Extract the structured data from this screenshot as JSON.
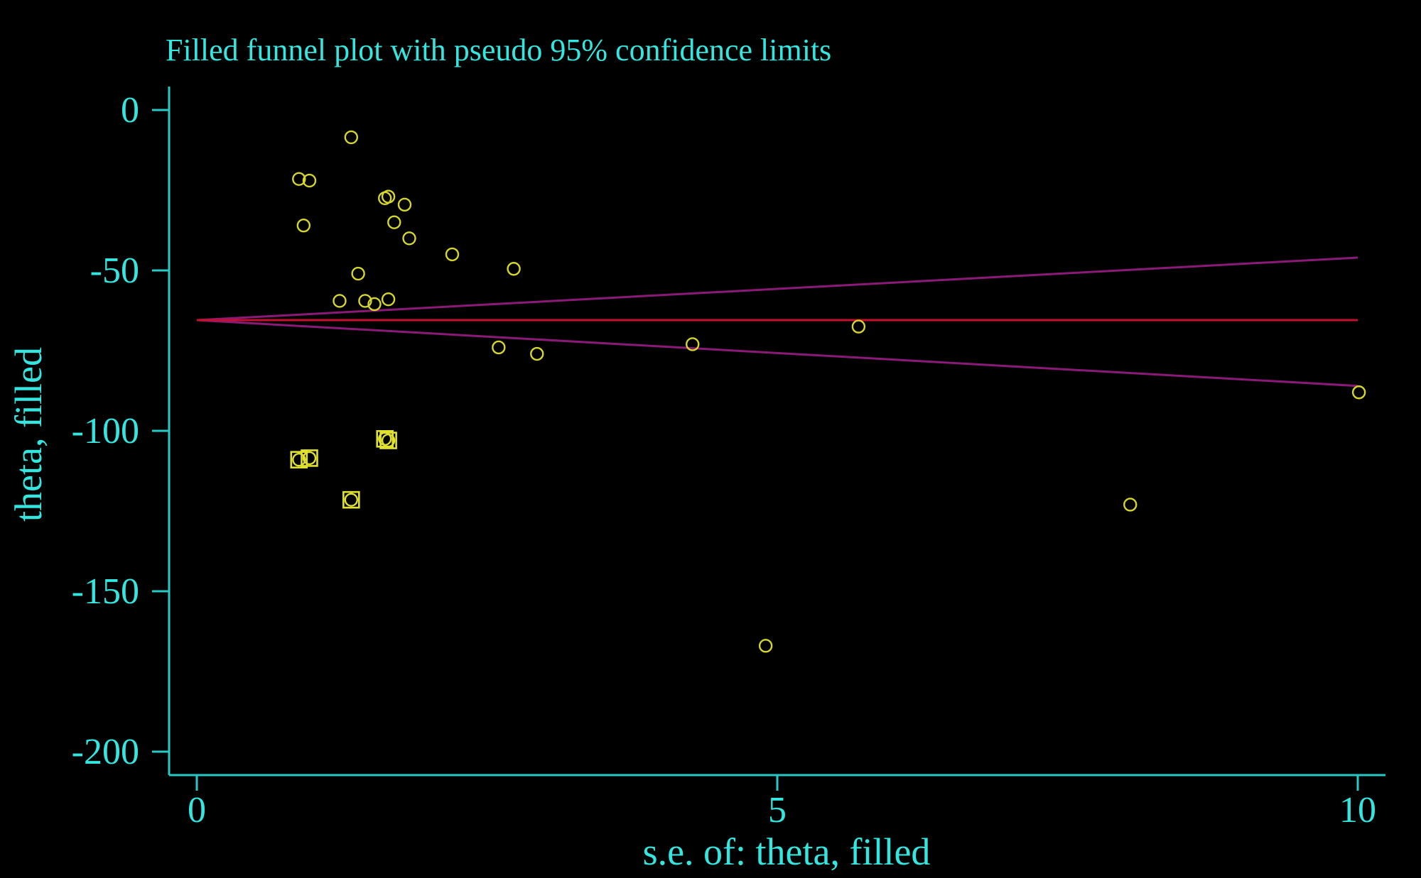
{
  "chart_data": {
    "type": "scatter",
    "title": "Filled funnel plot with pseudo 95% confidence limits",
    "xlabel": "s.e. of: theta, filled",
    "ylabel": "theta, filled",
    "xlim": [
      -0.25,
      10.25
    ],
    "ylim": [
      -207,
      7
    ],
    "xticks": [
      0,
      5,
      10
    ],
    "yticks": [
      0,
      -50,
      -100,
      -150,
      -200
    ],
    "grid": false,
    "colors": {
      "background": "#000000",
      "text": "#33e6e0",
      "axis": "#26c9c4",
      "points": "#d6d62a",
      "filled_markers": "#e0e02e",
      "pooled_line": "#c8102e",
      "ci_lines": "#8a1a78"
    },
    "pooled_estimate": -65.5,
    "ci_limits": {
      "x": [
        0,
        10
      ],
      "upper": [
        -65.5,
        -46
      ],
      "lower": [
        -65.5,
        -86
      ]
    },
    "points": [
      {
        "x": 0.88,
        "y": -21.5
      },
      {
        "x": 0.97,
        "y": -22.0
      },
      {
        "x": 0.92,
        "y": -36.0
      },
      {
        "x": 1.33,
        "y": -8.5
      },
      {
        "x": 1.62,
        "y": -27.5
      },
      {
        "x": 1.65,
        "y": -27.0
      },
      {
        "x": 1.79,
        "y": -29.5
      },
      {
        "x": 1.7,
        "y": -35.0
      },
      {
        "x": 1.83,
        "y": -40.0
      },
      {
        "x": 2.2,
        "y": -45.0
      },
      {
        "x": 1.39,
        "y": -51.0
      },
      {
        "x": 2.73,
        "y": -49.5
      },
      {
        "x": 1.23,
        "y": -59.5
      },
      {
        "x": 1.45,
        "y": -59.5
      },
      {
        "x": 1.53,
        "y": -60.5
      },
      {
        "x": 1.65,
        "y": -59.0
      },
      {
        "x": 2.6,
        "y": -74.0
      },
      {
        "x": 2.93,
        "y": -76.0
      },
      {
        "x": 4.27,
        "y": -73.0
      },
      {
        "x": 5.7,
        "y": -67.5
      },
      {
        "x": 10.01,
        "y": -88.0
      },
      {
        "x": 8.04,
        "y": -123.0
      },
      {
        "x": 4.9,
        "y": -167.0
      }
    ],
    "filled_points": [
      {
        "x": 0.88,
        "y": -109.0
      },
      {
        "x": 0.97,
        "y": -108.5
      },
      {
        "x": 1.33,
        "y": -121.5
      },
      {
        "x": 1.62,
        "y": -102.5
      },
      {
        "x": 1.65,
        "y": -103.0
      }
    ]
  }
}
